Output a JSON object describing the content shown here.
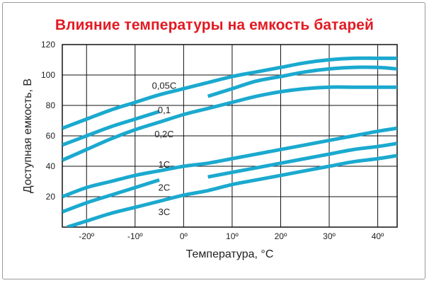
{
  "chart_data": {
    "type": "line",
    "title": "Влияние температуры на емкость батарей",
    "xlabel": "Температура, °C",
    "ylabel": "Доступная емкость, В",
    "xlim": [
      -25,
      44
    ],
    "ylim": [
      0,
      120
    ],
    "x_ticks": [
      -20,
      -10,
      0,
      10,
      20,
      30,
      40
    ],
    "x_tick_labels": [
      "-20º",
      "-10º",
      "0º",
      "10º",
      "20º",
      "30º",
      "40º"
    ],
    "y_ticks": [
      20,
      40,
      60,
      80,
      100,
      120
    ],
    "grid": true,
    "line_color": "#1ba9cf",
    "series": [
      {
        "name": "0,05C",
        "label_x": -4,
        "label_y": 91,
        "x": [
          -25,
          -20,
          -15,
          -10,
          -5,
          0,
          5,
          10,
          15,
          20,
          25,
          30,
          35,
          40,
          44
        ],
        "values": [
          65,
          71,
          77,
          82,
          87,
          91,
          95,
          99,
          102,
          105,
          108,
          110,
          111,
          111,
          111
        ]
      },
      {
        "name": "0,1",
        "label_x": -4,
        "label_y": 75,
        "x": [
          -25,
          -20,
          -15,
          -10,
          -5,
          0.5,
          5,
          10,
          15,
          20,
          25,
          30,
          35,
          40,
          44
        ],
        "values": [
          54,
          60,
          66,
          71,
          76,
          null,
          86,
          91,
          96,
          99,
          102,
          104,
          105,
          105,
          104
        ],
        "gap_between": [
          -5,
          1.2
        ]
      },
      {
        "name": "0,2C",
        "label_x": -4,
        "label_y": 59,
        "x": [
          -25,
          -20,
          -15,
          -10,
          -5,
          0,
          5,
          10,
          15,
          20,
          25,
          30,
          35,
          40,
          44
        ],
        "values": [
          44,
          51,
          58,
          64,
          69,
          74,
          78,
          82,
          86,
          89,
          91,
          92,
          92,
          92,
          92
        ]
      },
      {
        "name": "1C",
        "label_x": -4,
        "label_y": 39,
        "x": [
          -25,
          -20,
          -15,
          -10,
          -5,
          0,
          5,
          10,
          15,
          20,
          25,
          30,
          35,
          40,
          44
        ],
        "values": [
          20,
          26,
          30,
          34,
          37,
          40,
          42,
          45,
          48,
          51,
          54,
          57,
          60,
          63,
          65
        ]
      },
      {
        "name": "2C",
        "label_x": -4,
        "label_y": 24,
        "x": [
          -25,
          -20,
          -15,
          -10,
          -5,
          0,
          5,
          10,
          15,
          20,
          25,
          30,
          35,
          40,
          44
        ],
        "values": [
          10,
          16,
          21,
          26,
          31,
          null,
          33,
          36,
          39,
          42,
          45,
          48,
          51,
          53,
          55
        ],
        "gap_between": [
          -5,
          0.5
        ]
      },
      {
        "name": "3C",
        "label_x": -4,
        "label_y": 8,
        "x": [
          -24,
          -20,
          -15,
          -10,
          -5,
          0,
          5,
          10,
          15,
          20,
          25,
          30,
          35,
          40,
          44
        ],
        "values": [
          0,
          4,
          9,
          13,
          17,
          21,
          24,
          28,
          31,
          34,
          37,
          40,
          43,
          45,
          47
        ]
      }
    ]
  }
}
